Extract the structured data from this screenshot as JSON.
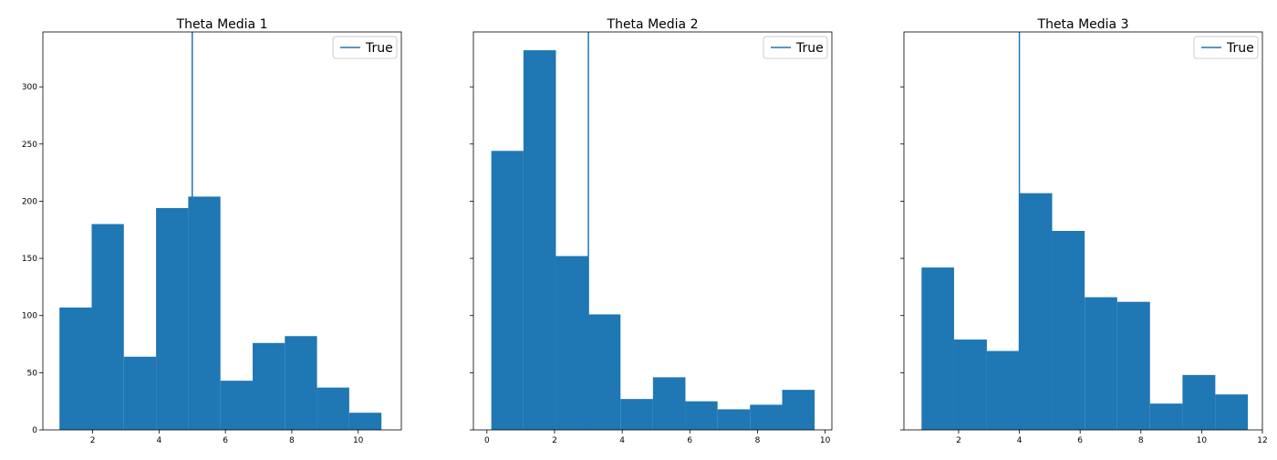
{
  "chart_data": [
    {
      "type": "histogram",
      "title": "Theta Media 1",
      "xlabel": "",
      "ylabel": "",
      "xlim": [
        0.5,
        11.3
      ],
      "ylim": [
        0,
        348
      ],
      "xticks": [
        2,
        4,
        6,
        8,
        10
      ],
      "yticks": [
        0,
        50,
        100,
        150,
        200,
        250,
        300
      ],
      "show_yticklabels": true,
      "bin_edges": [
        1.0,
        1.97,
        2.94,
        3.91,
        4.88,
        5.85,
        6.82,
        7.79,
        8.76,
        9.73,
        10.7
      ],
      "counts": [
        107,
        180,
        64,
        194,
        204,
        43,
        76,
        82,
        37,
        15
      ],
      "bar_color": "#1f77b4",
      "true_value": 5.0,
      "legend": {
        "label": "True",
        "placement": "upper right"
      },
      "grid": false
    },
    {
      "type": "histogram",
      "title": "Theta Media 2",
      "xlabel": "",
      "ylabel": "",
      "xlim": [
        -0.4,
        10.2
      ],
      "ylim": [
        0,
        348
      ],
      "xticks": [
        0,
        2,
        4,
        6,
        8,
        10
      ],
      "yticks": [
        0,
        50,
        100,
        150,
        200,
        250,
        300
      ],
      "show_yticklabels": false,
      "bin_edges": [
        0.13,
        1.08,
        2.04,
        3.0,
        3.95,
        4.91,
        5.87,
        6.82,
        7.78,
        8.73,
        9.69
      ],
      "counts": [
        244,
        332,
        152,
        101,
        27,
        46,
        25,
        18,
        22,
        35
      ],
      "bar_color": "#1f77b4",
      "true_value": 3.0,
      "legend": {
        "label": "True",
        "placement": "upper right"
      },
      "grid": false
    },
    {
      "type": "histogram",
      "title": "Theta Media 3",
      "xlabel": "",
      "ylabel": "",
      "xlim": [
        0.2,
        12.0
      ],
      "ylim": [
        0,
        348
      ],
      "xticks": [
        2,
        4,
        6,
        8,
        10,
        12
      ],
      "yticks": [
        0,
        50,
        100,
        150,
        200,
        250,
        300
      ],
      "show_yticklabels": false,
      "bin_edges": [
        0.78,
        1.85,
        2.93,
        4.0,
        5.08,
        6.15,
        7.22,
        8.3,
        9.37,
        10.45,
        11.52
      ],
      "counts": [
        142,
        79,
        69,
        207,
        174,
        116,
        112,
        23,
        48,
        31
      ],
      "bar_color": "#1f77b4",
      "true_value": 4.0,
      "legend": {
        "label": "True",
        "placement": "upper right"
      },
      "grid": false
    }
  ]
}
